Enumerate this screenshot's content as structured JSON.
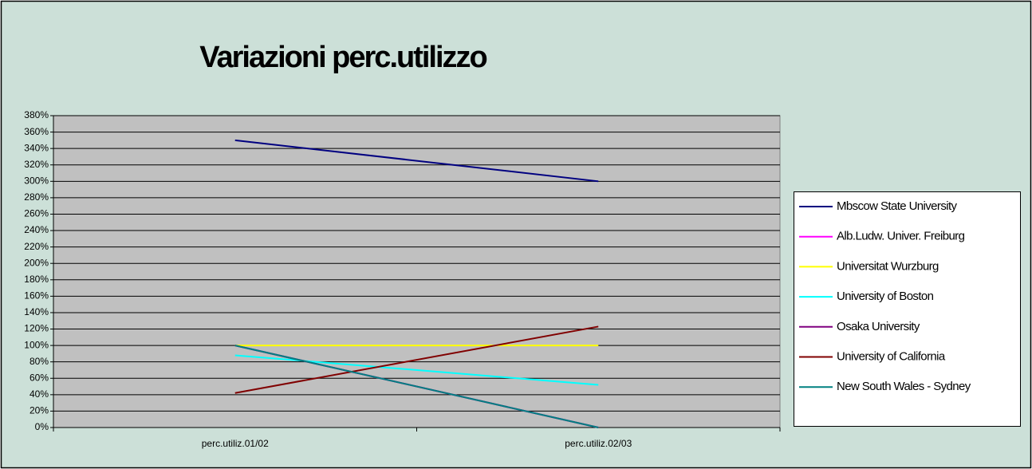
{
  "chart_data": {
    "type": "line",
    "title": "Variazioni perc.utilizzo",
    "categories": [
      "perc.utiliz.01/02",
      "perc.utiliz.02/03"
    ],
    "series": [
      {
        "name": "Mbscow State University",
        "color": "#000080",
        "values": [
          350,
          300
        ]
      },
      {
        "name": "Alb.Ludw. Univer. Freiburg",
        "color": "#ff00ff",
        "values": [
          100,
          0
        ]
      },
      {
        "name": "Universitat Wurzburg",
        "color": "#ffff00",
        "values": [
          100,
          100
        ]
      },
      {
        "name": "University of Boston",
        "color": "#00ffff",
        "values": [
          88,
          52
        ]
      },
      {
        "name": "Osaka University",
        "color": "#800080",
        "values": [
          100,
          0
        ]
      },
      {
        "name": "University of California",
        "color": "#800000",
        "values": [
          42,
          123
        ]
      },
      {
        "name": "New South Wales - Sydney",
        "color": "#008080",
        "values": [
          100,
          0
        ]
      }
    ],
    "ylim": [
      0,
      380
    ],
    "yticks": [
      {
        "value": 0,
        "label": "0%"
      },
      {
        "value": 20,
        "label": "20%"
      },
      {
        "value": 40,
        "label": "40%"
      },
      {
        "value": 60,
        "label": "60%"
      },
      {
        "value": 80,
        "label": "80%"
      },
      {
        "value": 100,
        "label": "100%"
      },
      {
        "value": 120,
        "label": "120%"
      },
      {
        "value": 140,
        "label": "140%"
      },
      {
        "value": 160,
        "label": "160%"
      },
      {
        "value": 180,
        "label": "180%"
      },
      {
        "value": 200,
        "label": "200%"
      },
      {
        "value": 220,
        "label": "220%"
      },
      {
        "value": 240,
        "label": "240%"
      },
      {
        "value": 260,
        "label": "260%"
      },
      {
        "value": 280,
        "label": "280%"
      },
      {
        "value": 300,
        "label": "300%"
      },
      {
        "value": 320,
        "label": "320%"
      },
      {
        "value": 340,
        "label": "340%"
      },
      {
        "value": 360,
        "label": "360%"
      },
      {
        "value": 380,
        "label": "380%"
      }
    ],
    "grid": true,
    "legend": "right"
  }
}
